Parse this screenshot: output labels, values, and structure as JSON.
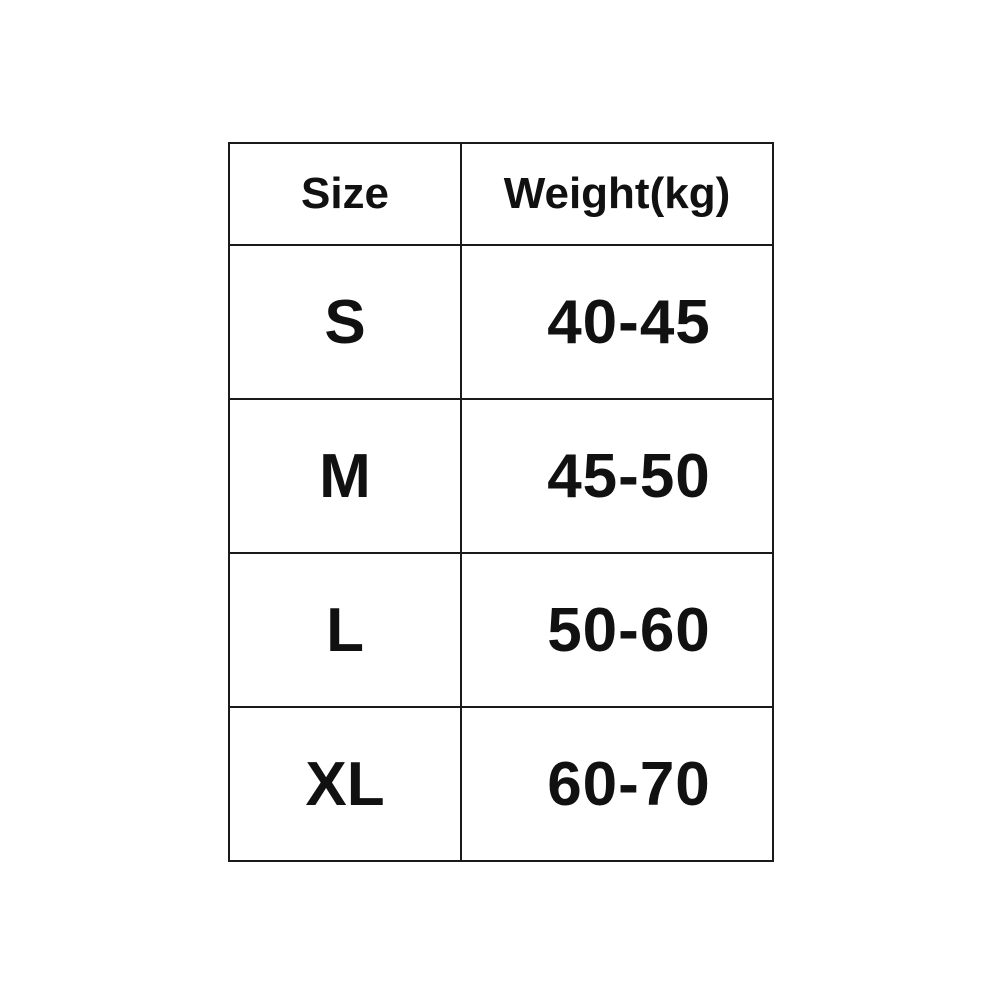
{
  "table": {
    "headers": [
      "Size",
      "Weight(kg)"
    ],
    "rows": [
      {
        "size": "S",
        "weight": "40-45"
      },
      {
        "size": "M",
        "weight": "45-50"
      },
      {
        "size": "L",
        "weight": "50-60"
      },
      {
        "size": "XL",
        "weight": "60-70"
      }
    ]
  }
}
